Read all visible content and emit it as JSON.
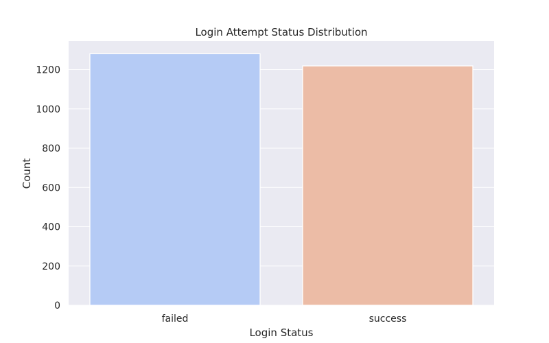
{
  "chart_data": {
    "type": "bar",
    "title": "Login Attempt Status Distribution",
    "xlabel": "Login Status",
    "ylabel": "Count",
    "categories": [
      "failed",
      "success"
    ],
    "values": [
      1281,
      1219
    ],
    "ylim": [
      0,
      1345
    ],
    "yticks": [
      0,
      200,
      400,
      600,
      800,
      1000,
      1200
    ],
    "grid": true,
    "colors": [
      "#b5cbf5",
      "#ecbca6"
    ],
    "background": "#eaeaf2"
  }
}
